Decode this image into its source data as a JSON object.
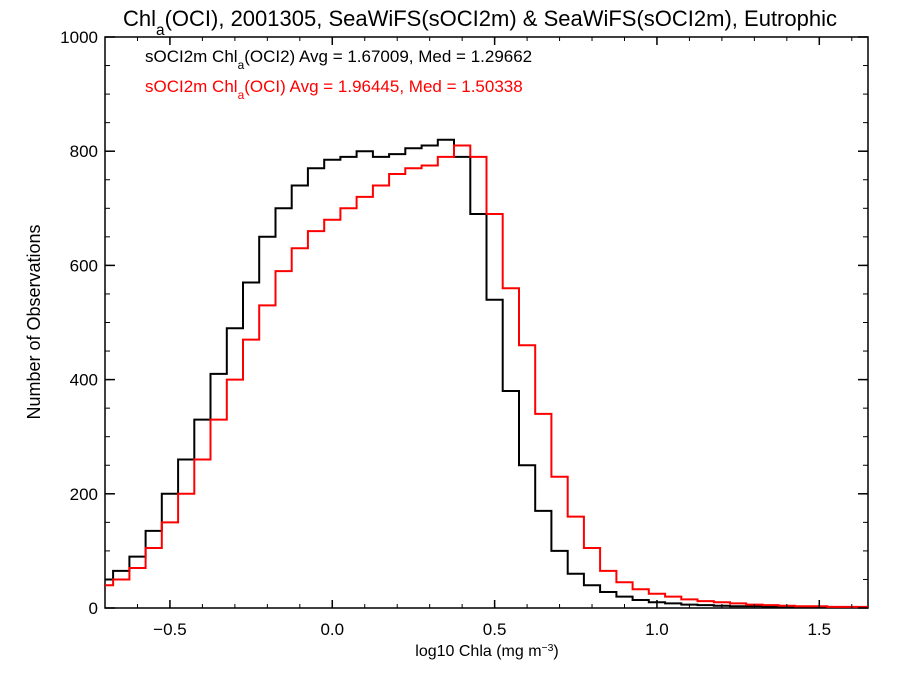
{
  "chart_data": {
    "type": "line",
    "title": "Chl_a(OCI), 2001305, SeaWiFS(sOCI2m) & SeaWiFS(sOCI2m), Eutrophic",
    "xlabel": "log10 Chla (mg m^-3)",
    "ylabel": "Number of Observations",
    "xlim": [
      -0.7,
      1.65
    ],
    "ylim": [
      0,
      1000
    ],
    "x_ticks": [
      -0.5,
      0.0,
      0.5,
      1.0,
      1.5
    ],
    "x_tick_labels": [
      "−0.5",
      "0.0",
      "0.5",
      "1.0",
      "1.5"
    ],
    "y_ticks": [
      0,
      200,
      400,
      600,
      800,
      1000
    ],
    "y_tick_labels": [
      "0",
      "200",
      "400",
      "600",
      "800",
      "1000"
    ],
    "legend_position": "top-left",
    "series": [
      {
        "name": "sOCI2m Chl_a(OCI2) Avg = 1.67009, Med = 1.29662",
        "color": "#000000",
        "x": [
          -0.7,
          -0.65,
          -0.6,
          -0.55,
          -0.5,
          -0.45,
          -0.4,
          -0.35,
          -0.3,
          -0.25,
          -0.2,
          -0.15,
          -0.1,
          -0.05,
          0.0,
          0.05,
          0.1,
          0.15,
          0.2,
          0.25,
          0.3,
          0.35,
          0.4,
          0.45,
          0.5,
          0.55,
          0.6,
          0.65,
          0.7,
          0.75,
          0.8,
          0.85,
          0.9,
          0.95,
          1.0,
          1.05,
          1.1,
          1.15,
          1.2,
          1.25,
          1.3,
          1.35,
          1.4,
          1.45,
          1.5,
          1.55,
          1.6,
          1.65
        ],
        "y": [
          50,
          65,
          90,
          135,
          200,
          260,
          330,
          410,
          490,
          570,
          650,
          700,
          740,
          770,
          785,
          790,
          800,
          790,
          795,
          805,
          810,
          820,
          790,
          690,
          540,
          380,
          250,
          170,
          100,
          60,
          40,
          28,
          20,
          14,
          10,
          8,
          6,
          5,
          4,
          3,
          3,
          2,
          2,
          2,
          1,
          1,
          1,
          1
        ]
      },
      {
        "name": "sOCI2m Chl_a(OCI) Avg = 1.96445, Med = 1.50338",
        "color": "#ff0000",
        "x": [
          -0.7,
          -0.65,
          -0.6,
          -0.55,
          -0.5,
          -0.45,
          -0.4,
          -0.35,
          -0.3,
          -0.25,
          -0.2,
          -0.15,
          -0.1,
          -0.05,
          0.0,
          0.05,
          0.1,
          0.15,
          0.2,
          0.25,
          0.3,
          0.35,
          0.4,
          0.45,
          0.5,
          0.55,
          0.6,
          0.65,
          0.7,
          0.75,
          0.8,
          0.85,
          0.9,
          0.95,
          1.0,
          1.05,
          1.1,
          1.15,
          1.2,
          1.25,
          1.3,
          1.35,
          1.4,
          1.45,
          1.5,
          1.55,
          1.6,
          1.65
        ],
        "y": [
          40,
          50,
          70,
          105,
          150,
          200,
          260,
          330,
          400,
          470,
          530,
          590,
          630,
          660,
          680,
          700,
          720,
          740,
          760,
          770,
          775,
          790,
          810,
          790,
          690,
          560,
          460,
          340,
          230,
          160,
          105,
          65,
          45,
          33,
          25,
          20,
          15,
          12,
          10,
          8,
          6,
          5,
          4,
          3,
          3,
          2,
          2,
          2
        ]
      }
    ]
  }
}
